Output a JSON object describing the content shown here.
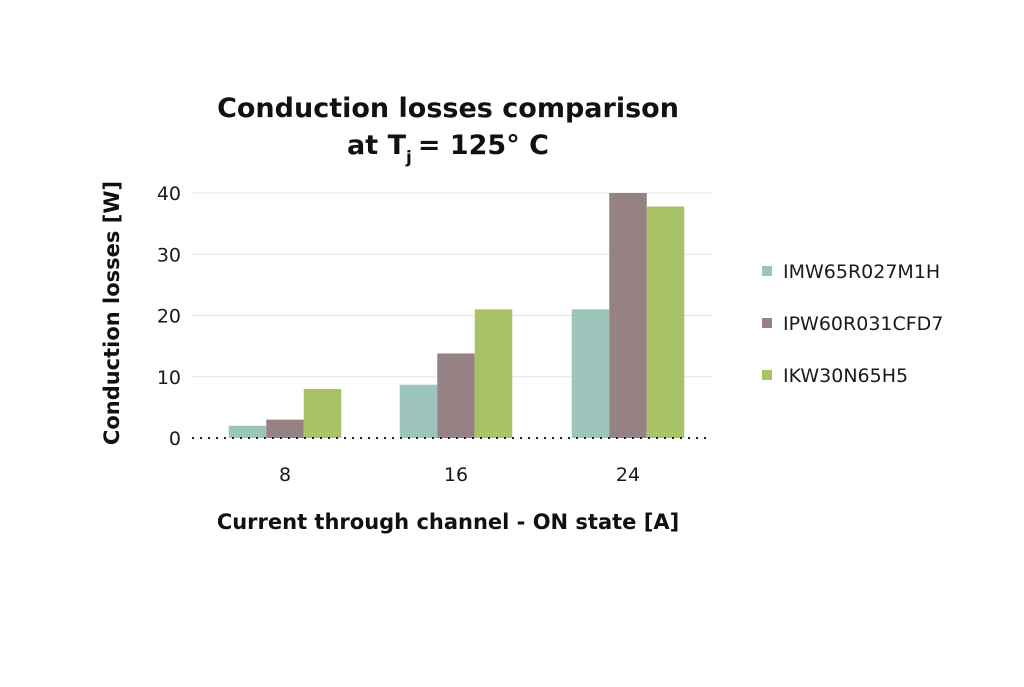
{
  "chart_data": {
    "type": "bar",
    "title_line1": "Conduction losses comparison",
    "title_line2_prefix": "at T",
    "title_line2_sub": "j",
    "title_line2_suffix": "= 125° C",
    "xlabel": "Current through channel - ON state [A]",
    "ylabel": "Conduction losses [W]",
    "categories": [
      "8",
      "16",
      "24"
    ],
    "ylim": [
      0,
      40
    ],
    "yticks": [
      0,
      10,
      20,
      30,
      40
    ],
    "grid": true,
    "legend_position": "right",
    "series": [
      {
        "name": "IMW65R027M1H",
        "color": "#9cc4bb",
        "values": [
          2,
          8.7,
          21
        ]
      },
      {
        "name": "IPW60R031CFD7",
        "color": "#968284",
        "values": [
          3,
          13.8,
          40
        ]
      },
      {
        "name": "IKW30N65H5",
        "color": "#a8c268",
        "values": [
          8,
          21,
          37.8
        ]
      }
    ]
  }
}
